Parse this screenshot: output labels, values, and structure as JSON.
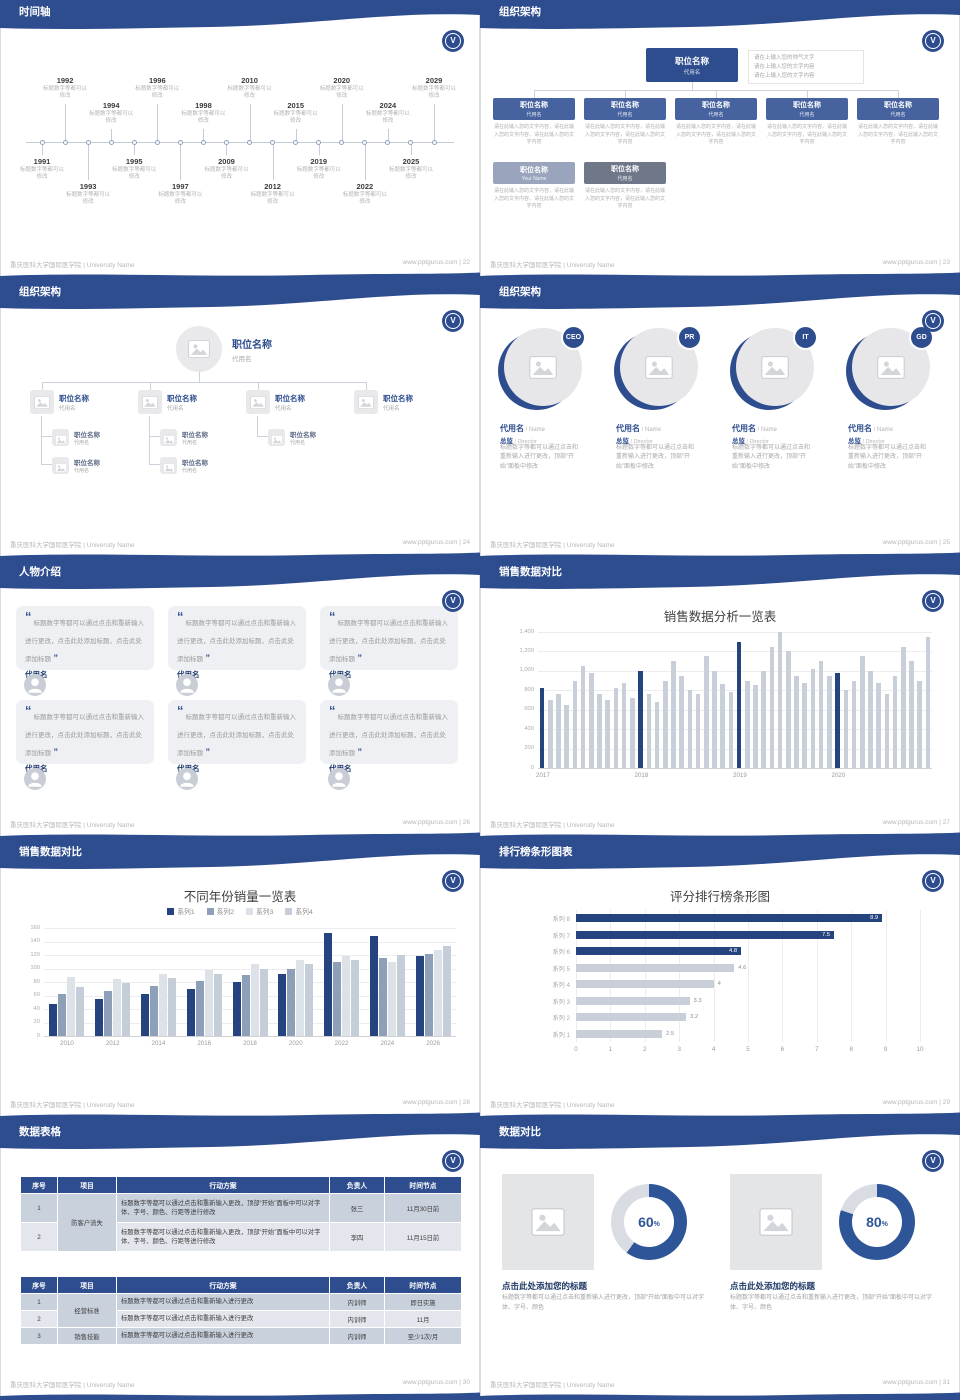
{
  "footer": {
    "left": "重庆医科大学国际医学院 | University Name",
    "site": "www.pptgurus.com",
    "sep": " | "
  },
  "logo": {
    "letter": "V"
  },
  "slides": {
    "timeline": {
      "title": "时间轴",
      "page": "22",
      "caption": "标题数字等都可以修改",
      "entries": [
        {
          "year": "1991",
          "side": "bottom",
          "level": 1
        },
        {
          "year": "1992",
          "side": "top",
          "level": 2
        },
        {
          "year": "1993",
          "side": "bottom",
          "level": 2
        },
        {
          "year": "1994",
          "side": "top",
          "level": 1
        },
        {
          "year": "1995",
          "side": "bottom",
          "level": 1
        },
        {
          "year": "1996",
          "side": "top",
          "level": 2
        },
        {
          "year": "1997",
          "side": "bottom",
          "level": 2
        },
        {
          "year": "1998",
          "side": "top",
          "level": 1
        },
        {
          "year": "2009",
          "side": "bottom",
          "level": 1
        },
        {
          "year": "2010",
          "side": "top",
          "level": 2
        },
        {
          "year": "2012",
          "side": "bottom",
          "level": 2
        },
        {
          "year": "2015",
          "side": "top",
          "level": 1
        },
        {
          "year": "2019",
          "side": "bottom",
          "level": 1
        },
        {
          "year": "2020",
          "side": "top",
          "level": 2
        },
        {
          "year": "2022",
          "side": "bottom",
          "level": 2
        },
        {
          "year": "2024",
          "side": "top",
          "level": 1
        },
        {
          "year": "2025",
          "side": "bottom",
          "level": 1
        },
        {
          "year": "2029",
          "side": "top",
          "level": 2
        }
      ]
    },
    "org_chart_1": {
      "title": "组织架构",
      "page": "23",
      "root": {
        "name": "职位名称",
        "alias": "代用名"
      },
      "root_note": [
        "请在上输入您的帅气文字",
        "请在上输入您的文字内容",
        "请在上输入您的文字内容"
      ],
      "child_note": "请在此输入您的文字内容，请在此输入您的文字内容，请在此输入您的文字内容",
      "children": [
        {
          "name": "职位名称",
          "alias": "代用名"
        },
        {
          "name": "职位名称",
          "alias": "代用名"
        },
        {
          "name": "职位名称",
          "alias": "代用名"
        },
        {
          "name": "职位名称",
          "alias": "代用名"
        },
        {
          "name": "职位名称",
          "alias": "代用名"
        }
      ],
      "extras": [
        {
          "name": "职位名称",
          "alias": "Your Name"
        },
        {
          "name": "职位名称",
          "alias": "代用名"
        }
      ]
    },
    "org_chart_2": {
      "title": "组织架构",
      "page": "24",
      "root": {
        "name": "职位名称",
        "alias": "代用名"
      },
      "level1": [
        {
          "name": "职位名称",
          "alias": "代用名"
        },
        {
          "name": "职位名称",
          "alias": "代用名"
        },
        {
          "name": "职位名称",
          "alias": "代用名"
        },
        {
          "name": "职位名称",
          "alias": "代用名"
        }
      ],
      "subs": [
        [
          {
            "name": "职位名称",
            "alias": "代用名"
          },
          {
            "name": "职位名称",
            "alias": "代用名"
          }
        ],
        [
          {
            "name": "职位名称",
            "alias": "代用名"
          },
          {
            "name": "职位名称",
            "alias": "代用名"
          }
        ],
        [
          {
            "name": "职位名称",
            "alias": "代用名"
          }
        ],
        []
      ]
    },
    "org_chart_3": {
      "title": "组织架构",
      "page": "25",
      "members": [
        {
          "badge": "CEO",
          "name": "代用名",
          "name_suffix": "/ Name",
          "role": "总监",
          "role_suffix": "/ Director",
          "desc": "标题数字等都可以通过点击和重新输入进行更改，顶部“开始”面板中修改"
        },
        {
          "badge": "PR",
          "name": "代用名",
          "name_suffix": "/ Name",
          "role": "总监",
          "role_suffix": "/ Director",
          "desc": "标题数字等都可以通过点击和重新输入进行更改，顶部“开始”面板中修改"
        },
        {
          "badge": "IT",
          "name": "代用名",
          "name_suffix": "/ Name",
          "role": "总监",
          "role_suffix": "/ Director",
          "desc": "标题数字等都可以通过点击和重新输入进行更改，顶部“开始”面板中修改"
        },
        {
          "badge": "GD",
          "name": "代用名",
          "name_suffix": "/ Name",
          "role": "总监",
          "role_suffix": "/ Director",
          "desc": "标题数字等都可以通过点击和重新输入进行更改，顶部“开始”面板中修改"
        }
      ]
    },
    "people": {
      "title": "人物介绍",
      "page": "26",
      "quote_open": "“",
      "quote_close": "”",
      "cards": [
        {
          "text": "标题数字等都可以通过点击和重新输入进行更改，点击此处添加标题，点击此处添加标题",
          "name": "代用名"
        },
        {
          "text": "标题数字等都可以通过点击和重新输入进行更改，点击此处添加标题，点击此处添加标题",
          "name": "代用名"
        },
        {
          "text": "标题数字等都可以通过点击和重新输入进行更改，点击此处添加标题，点击此处添加标题",
          "name": "代用名"
        },
        {
          "text": "标题数字等都可以通过点击和重新输入进行更改，点击此处添加标题，点击此处添加标题",
          "name": "代用名"
        },
        {
          "text": "标题数字等都可以通过点击和重新输入进行更改，点击此处添加标题，点击此处添加标题",
          "name": "代用名"
        },
        {
          "text": "标题数字等都可以通过点击和重新输入进行更改，点击此处添加标题，点击此处添加标题",
          "name": "代用名"
        }
      ]
    },
    "sales_chart": {
      "title": "销售数据对比",
      "page": "27"
    },
    "year_chart": {
      "title": "销售数据对比",
      "page": "28"
    },
    "rank_chart": {
      "title": "排行榜条形图表",
      "page": "29"
    },
    "tables": {
      "title": "数据表格",
      "page": "30",
      "table1": {
        "headers": [
          "序号",
          "项目",
          "行动方案",
          "负责人",
          "时间节点"
        ],
        "rows": [
          {
            "no": "1",
            "project": "防客户流失",
            "span": 2,
            "action": "标题数字等都可以通过点击和重新输入更改，顶部“开始”面板中可以对字体、字号、颜色、行距等进行修改",
            "owner": "张三",
            "time": "11月30日前"
          },
          {
            "no": "2",
            "action": "标题数字等都可以通过点击和重新输入更改，顶部“开始”面板中可以对字体、字号、颜色、行距等进行修改",
            "owner": "李四",
            "time": "11月15日前"
          }
        ]
      },
      "table2": {
        "headers": [
          "序号",
          "项目",
          "行动方案",
          "负责人",
          "时间节点"
        ],
        "rows": [
          {
            "no": "1",
            "project": "经营标准",
            "span": 2,
            "action": "标题数字等都可以通过点击和重新输入进行更改",
            "owner": "内训师",
            "time": "即日实施"
          },
          {
            "no": "2",
            "action": "标题数字等都可以通过点击和重新输入进行更改",
            "owner": "内训师",
            "time": "11月"
          },
          {
            "no": "3",
            "project": "销售技能",
            "span": 1,
            "action": "标题数字等都可以通过点击和重新输入进行更改",
            "owner": "内训师",
            "time": "至少1次/月"
          }
        ]
      }
    },
    "compare": {
      "title": "数据对比",
      "page": "31",
      "panels": [
        {
          "heading": "点击此处添加您的标题",
          "desc": "标题数字等都可以通过点击和重新输入进行更改，顶部“开始”面板中可以对字体、字号、颜色"
        },
        {
          "heading": "点击此处添加您的标题",
          "desc": "标题数字等都可以通过点击和重新输入进行更改，顶部“开始”面板中可以对字体、字号、颜色"
        }
      ]
    }
  },
  "chart_data": [
    {
      "type": "bar",
      "title": "销售数据分析一览表",
      "xlabel": "",
      "ylabel": "",
      "ylim": [
        0,
        1400
      ],
      "ytick_step": 200,
      "x_groups": [
        "2017",
        "2018",
        "2019",
        "2020"
      ],
      "values": [
        820,
        700,
        760,
        650,
        900,
        1050,
        980,
        760,
        700,
        820,
        880,
        720,
        1000,
        760,
        680,
        900,
        1100,
        950,
        800,
        760,
        1150,
        1000,
        860,
        780,
        1300,
        900,
        850,
        1000,
        1250,
        1400,
        1200,
        950,
        880,
        1020,
        1100,
        950,
        980,
        800,
        900,
        1150,
        1000,
        880,
        760,
        950,
        1250,
        1100,
        900,
        1350
      ],
      "highlight_indexes": [
        0,
        12,
        24,
        36
      ],
      "bar_color": "#c9cfd9",
      "highlight_color": "#24437f",
      "grid": true
    },
    {
      "type": "bar",
      "title": "不同年份销量一览表",
      "ylim": [
        0,
        160
      ],
      "ytick_step": 20,
      "grid": true,
      "legend_position": "top",
      "categories": [
        "2010",
        "2012",
        "2014",
        "2016",
        "2018",
        "2020",
        "2022",
        "2024",
        "2026"
      ],
      "series": [
        {
          "name": "系列1",
          "color": "#24437f",
          "values": [
            48,
            55,
            62,
            70,
            80,
            92,
            152,
            148,
            118
          ]
        },
        {
          "name": "系列2",
          "color": "#8e9fb8",
          "values": [
            62,
            66,
            74,
            82,
            90,
            100,
            110,
            116,
            122
          ]
        },
        {
          "name": "系列3",
          "color": "#dde1e8",
          "values": [
            88,
            84,
            92,
            98,
            106,
            112,
            118,
            110,
            128
          ]
        },
        {
          "name": "系列4",
          "color": "#c5cdd9",
          "values": [
            72,
            78,
            86,
            92,
            100,
            106,
            112,
            120,
            134
          ]
        }
      ]
    },
    {
      "type": "bar",
      "orientation": "horizontal",
      "title": "评分排行榜条形图",
      "xlim": [
        0,
        10
      ],
      "xtick_step": 1,
      "grid": true,
      "bar_color": "#c9cfd9",
      "highlight_color": "#24437f",
      "bars": [
        {
          "category": "系列 8",
          "value": 8.9,
          "highlight": true
        },
        {
          "category": "系列 7",
          "value": 7.5,
          "highlight": true
        },
        {
          "category": "系列 6",
          "value": 4.8,
          "highlight": true
        },
        {
          "category": "系列 5",
          "value": 4.6,
          "highlight": false
        },
        {
          "category": "系列 4",
          "value": 4,
          "highlight": false
        },
        {
          "category": "系列 3",
          "value": 3.3,
          "highlight": false
        },
        {
          "category": "系列 2",
          "value": 3.2,
          "highlight": false
        },
        {
          "category": "系列 1",
          "value": 2.5,
          "highlight": false
        }
      ]
    },
    {
      "type": "pie",
      "subtype": "donut",
      "percents": [
        60,
        80
      ],
      "ring_color": "#2e5597",
      "track_color": "#d9dde3"
    }
  ]
}
